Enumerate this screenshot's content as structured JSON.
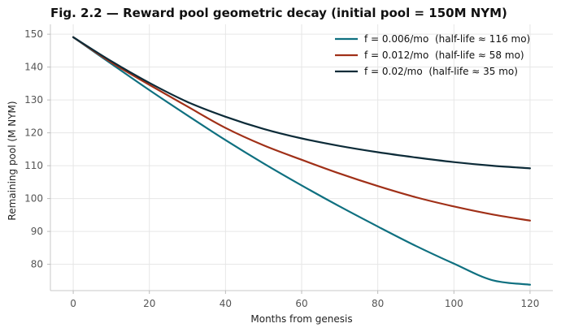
{
  "chart_data": {
    "type": "line",
    "title": "Fig. 2.2 — Reward pool geometric decay (initial pool = 150M NYM)",
    "xlabel": "Months from genesis",
    "ylabel": "Remaining pool (M NYM)",
    "xlim": [
      -6,
      126
    ],
    "ylim": [
      72,
      153
    ],
    "x_ticks": [
      0,
      20,
      40,
      60,
      80,
      100,
      120
    ],
    "y_ticks": [
      80,
      90,
      100,
      110,
      120,
      130,
      140,
      150
    ],
    "grid": true,
    "legend_position": "top-right",
    "x": [
      0,
      10,
      20,
      30,
      40,
      50,
      60,
      70,
      80,
      90,
      100,
      110,
      120
    ],
    "series": [
      {
        "name": "f = 0.006/mo  (half-life ≈ 116 mo)",
        "color": "#0f7080",
        "values": [
          149.1,
          141.0,
          133.0,
          125.3,
          117.8,
          110.7,
          104.0,
          97.6,
          91.5,
          85.6,
          80.2,
          75.2,
          73.8
        ]
      },
      {
        "name": "f = 0.012/mo  (half-life ≈ 58 mo)",
        "color": "#a03018",
        "values": [
          149.1,
          141.4,
          134.6,
          128.0,
          121.5,
          116.2,
          111.8,
          107.6,
          103.8,
          100.4,
          97.6,
          95.2,
          93.3
        ]
      },
      {
        "name": "f = 0.02/mo  (half-life ≈ 35 mo)",
        "color": "#0c2b38",
        "values": [
          149.1,
          141.8,
          135.2,
          129.4,
          124.9,
          121.2,
          118.3,
          116.0,
          114.1,
          112.5,
          111.1,
          110.0,
          109.2
        ]
      }
    ]
  }
}
